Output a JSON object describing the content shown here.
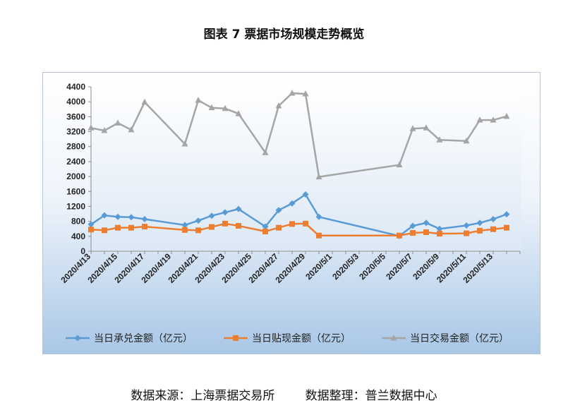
{
  "figure": {
    "title": "图表 7  票据市场规模走势概览",
    "source": "数据来源：上海票据交易所        数据整理：普兰数据中心"
  },
  "chart_data": {
    "type": "line",
    "title": "",
    "xlabel": "",
    "ylabel": "",
    "ylim": [
      0,
      4400
    ],
    "yticks": [
      0,
      400,
      800,
      1200,
      1600,
      2000,
      2400,
      2800,
      3200,
      3600,
      4000,
      4400
    ],
    "xlim": [
      "2020-04-13",
      "2020-05-15"
    ],
    "xtick_labels": [
      "2020/4/13",
      "2020/4/15",
      "2020/4/17",
      "2020/4/19",
      "2020/4/21",
      "2020/4/23",
      "2020/4/25",
      "2020/4/27",
      "2020/4/29",
      "2020/5/1",
      "2020/5/3",
      "2020/5/5",
      "2020/5/7",
      "2020/5/9",
      "2020/5/11",
      "2020/5/13"
    ],
    "x": [
      "2020-04-13",
      "2020-04-14",
      "2020-04-15",
      "2020-04-16",
      "2020-04-17",
      "2020-04-20",
      "2020-04-21",
      "2020-04-22",
      "2020-04-23",
      "2020-04-24",
      "2020-04-26",
      "2020-04-27",
      "2020-04-28",
      "2020-04-29",
      "2020-04-30",
      "2020-05-06",
      "2020-05-07",
      "2020-05-08",
      "2020-05-09",
      "2020-05-11",
      "2020-05-12",
      "2020-05-13",
      "2020-05-14"
    ],
    "series": [
      {
        "name": "当日承兑金额（亿元）",
        "color": "#5b9bd5",
        "marker": "diamond",
        "values": [
          720,
          960,
          920,
          910,
          860,
          700,
          820,
          950,
          1040,
          1130,
          660,
          1100,
          1280,
          1520,
          920,
          410,
          680,
          760,
          600,
          690,
          760,
          860,
          990
        ]
      },
      {
        "name": "当日贴现金额（亿元）",
        "color": "#ed7d31",
        "marker": "square",
        "values": [
          580,
          560,
          630,
          630,
          660,
          570,
          560,
          650,
          740,
          680,
          530,
          630,
          730,
          740,
          420,
          420,
          490,
          510,
          470,
          480,
          550,
          590,
          630
        ]
      },
      {
        "name": "当日交易金额（亿元）",
        "color": "#a5a5a5",
        "marker": "triangle",
        "values": [
          3300,
          3230,
          3430,
          3250,
          3990,
          2870,
          4040,
          3840,
          3820,
          3680,
          2640,
          3890,
          4230,
          4210,
          1990,
          2310,
          3280,
          3300,
          2980,
          2950,
          3510,
          3510,
          3610
        ]
      }
    ],
    "legend_position": "bottom",
    "grid": false
  }
}
